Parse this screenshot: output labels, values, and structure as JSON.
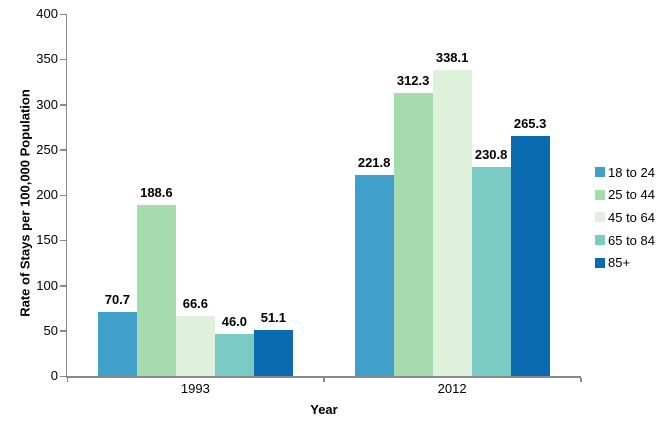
{
  "chart_data": {
    "type": "bar",
    "title": "",
    "xlabel": "Year",
    "ylabel": "Rate of Stays per 100,000 Population",
    "categories": [
      "1993",
      "2012"
    ],
    "series": [
      {
        "name": "18 to 24",
        "color": "#41a0c9",
        "values": [
          70.7,
          221.8
        ]
      },
      {
        "name": "25 to 44",
        "color": "#a5dbae",
        "values": [
          188.6,
          312.3
        ]
      },
      {
        "name": "45 to 64",
        "color": "#ddf1db",
        "values": [
          66.6,
          338.1
        ]
      },
      {
        "name": "65 to 84",
        "color": "#7acbc3",
        "values": [
          46.0,
          230.8
        ]
      },
      {
        "name": "85+",
        "color": "#0a6bb0",
        "values": [
          51.1,
          265.3
        ]
      }
    ],
    "ylim": [
      0,
      400
    ],
    "ytick_step": 50,
    "yticks": [
      0,
      50,
      100,
      150,
      200,
      250,
      300,
      350,
      400
    ],
    "value_label_format": "one_decimal",
    "grid": false,
    "legend_position": "right",
    "axis_color": "#898989"
  }
}
